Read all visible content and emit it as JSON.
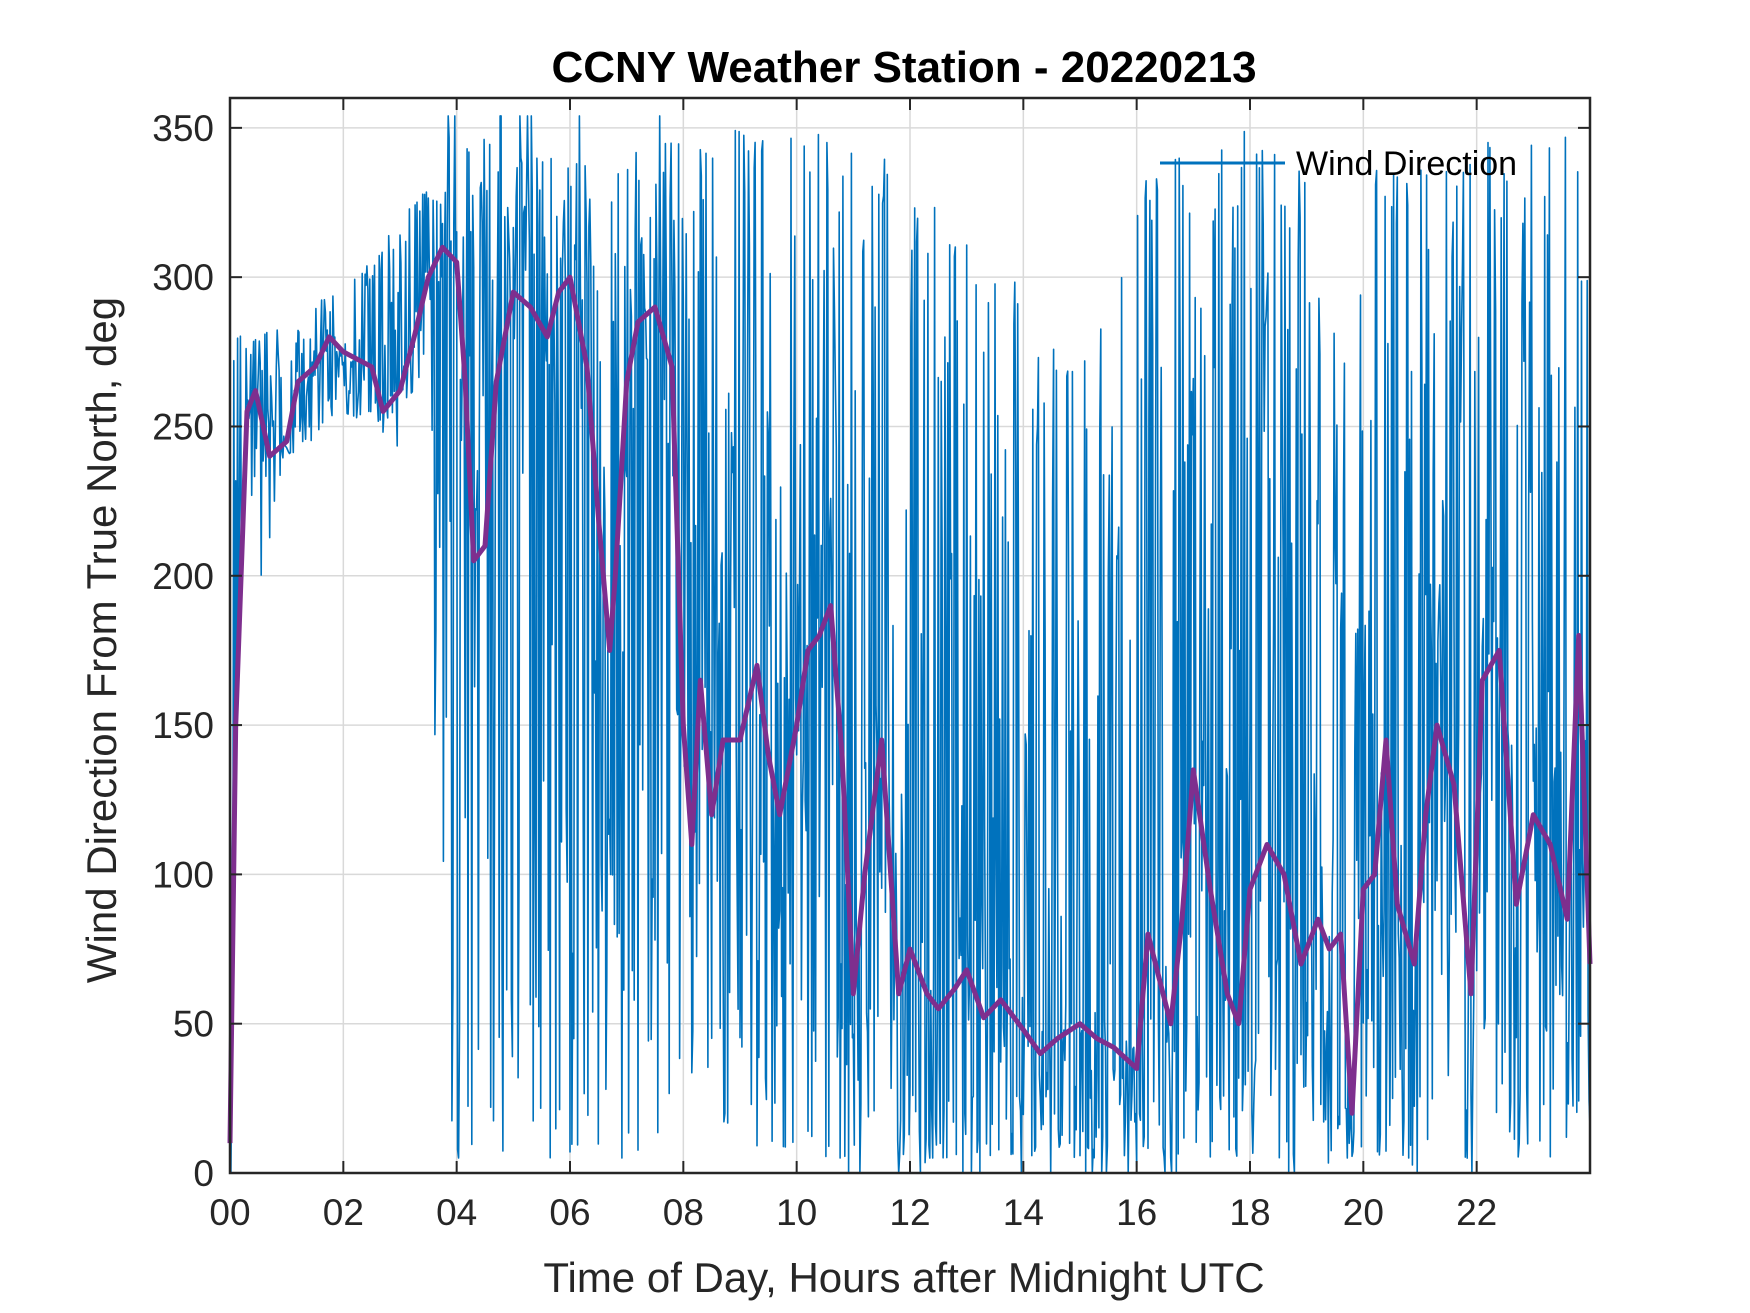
{
  "chart_data": {
    "type": "line",
    "title": "CCNY Weather Station - 20220213",
    "xlabel": "Time of Day, Hours after Midnight UTC",
    "ylabel": "Wind Direction From True North, deg",
    "xlim": [
      0,
      24
    ],
    "ylim": [
      0,
      360
    ],
    "grid": true,
    "x_ticks": [
      0,
      2,
      4,
      6,
      8,
      10,
      12,
      14,
      16,
      18,
      20,
      22
    ],
    "x_tick_labels": [
      "00",
      "02",
      "04",
      "06",
      "08",
      "10",
      "12",
      "14",
      "16",
      "18",
      "20",
      "22"
    ],
    "y_ticks": [
      0,
      50,
      100,
      150,
      200,
      250,
      300,
      350
    ],
    "y_tick_labels": [
      "0",
      "50",
      "100",
      "150",
      "200",
      "250",
      "300",
      "350"
    ],
    "legend": {
      "location": "top-right",
      "entries": [
        "Wind Direction"
      ]
    },
    "series": [
      {
        "name": "Wind Direction",
        "color": "#0072BD",
        "style": "noisy raw 1-minute samples; envelope approximated by (x, low, high) rows",
        "envelope": [
          [
            0.0,
            230,
            285
          ],
          [
            0.5,
            190,
            280
          ],
          [
            1.0,
            240,
            285
          ],
          [
            1.5,
            245,
            290
          ],
          [
            2.0,
            255,
            300
          ],
          [
            2.5,
            250,
            305
          ],
          [
            3.0,
            255,
            320
          ],
          [
            3.5,
            270,
            330
          ],
          [
            3.75,
            5,
            335
          ],
          [
            4.0,
            5,
            340
          ],
          [
            4.5,
            5,
            350
          ],
          [
            5.0,
            5,
            340
          ],
          [
            5.5,
            5,
            340
          ],
          [
            6.0,
            5,
            340
          ],
          [
            6.5,
            5,
            345
          ],
          [
            7.0,
            5,
            345
          ],
          [
            7.5,
            5,
            345
          ],
          [
            8.0,
            5,
            345
          ],
          [
            8.5,
            5,
            350
          ],
          [
            9.0,
            5,
            350
          ],
          [
            9.5,
            5,
            345
          ],
          [
            10.0,
            5,
            350
          ],
          [
            10.5,
            5,
            350
          ],
          [
            11.0,
            5,
            345
          ],
          [
            11.5,
            5,
            340
          ],
          [
            12.0,
            5,
            335
          ],
          [
            12.5,
            5,
            335
          ],
          [
            13.0,
            5,
            320
          ],
          [
            13.5,
            5,
            300
          ],
          [
            14.0,
            5,
            300
          ],
          [
            14.5,
            5,
            280
          ],
          [
            15.0,
            5,
            290
          ],
          [
            15.5,
            5,
            280
          ],
          [
            16.0,
            5,
            330
          ],
          [
            16.5,
            5,
            340
          ],
          [
            17.0,
            5,
            340
          ],
          [
            17.5,
            5,
            345
          ],
          [
            18.0,
            5,
            350
          ],
          [
            18.5,
            5,
            345
          ],
          [
            19.0,
            5,
            340
          ],
          [
            19.5,
            5,
            350
          ],
          [
            20.0,
            5,
            340
          ],
          [
            20.5,
            5,
            345
          ],
          [
            21.0,
            5,
            340
          ],
          [
            21.5,
            5,
            335
          ],
          [
            22.0,
            5,
            350
          ],
          [
            22.5,
            5,
            340
          ],
          [
            23.0,
            5,
            345
          ],
          [
            23.5,
            5,
            350
          ],
          [
            24.0,
            5,
            335
          ]
        ]
      },
      {
        "name": "",
        "color": "#7E2F8E",
        "style": "smoothed running mean",
        "x": [
          0.0,
          0.1,
          0.3,
          0.45,
          0.7,
          1.0,
          1.2,
          1.5,
          1.75,
          2.0,
          2.5,
          2.7,
          3.0,
          3.25,
          3.5,
          3.75,
          4.0,
          4.15,
          4.3,
          4.5,
          4.7,
          5.0,
          5.3,
          5.6,
          5.8,
          6.0,
          6.3,
          6.5,
          6.7,
          6.8,
          7.0,
          7.2,
          7.5,
          7.8,
          8.0,
          8.15,
          8.3,
          8.5,
          8.7,
          9.0,
          9.3,
          9.5,
          9.7,
          10.0,
          10.2,
          10.4,
          10.6,
          10.8,
          11.0,
          11.2,
          11.5,
          11.8,
          12.0,
          12.3,
          12.5,
          12.8,
          13.0,
          13.3,
          13.6,
          14.0,
          14.3,
          14.6,
          15.0,
          15.3,
          15.6,
          16.0,
          16.2,
          16.4,
          16.6,
          16.8,
          17.0,
          17.3,
          17.6,
          17.8,
          18.0,
          18.3,
          18.6,
          18.9,
          19.2,
          19.4,
          19.6,
          19.8,
          20.0,
          20.2,
          20.4,
          20.6,
          20.9,
          21.1,
          21.3,
          21.6,
          21.9,
          22.1,
          22.4,
          22.7,
          23.0,
          23.3,
          23.6,
          23.8,
          24.0
        ],
        "y": [
          10,
          150,
          255,
          262,
          240,
          245,
          265,
          270,
          280,
          275,
          270,
          255,
          262,
          280,
          300,
          310,
          305,
          265,
          205,
          210,
          265,
          295,
          290,
          280,
          295,
          300,
          270,
          220,
          175,
          200,
          265,
          285,
          290,
          270,
          150,
          110,
          165,
          120,
          145,
          145,
          170,
          140,
          120,
          150,
          175,
          180,
          190,
          140,
          60,
          100,
          145,
          60,
          75,
          60,
          55,
          62,
          68,
          52,
          58,
          48,
          40,
          45,
          50,
          45,
          42,
          35,
          80,
          65,
          50,
          85,
          135,
          95,
          60,
          50,
          95,
          110,
          100,
          70,
          85,
          75,
          80,
          20,
          95,
          100,
          145,
          90,
          70,
          120,
          150,
          130,
          60,
          165,
          175,
          90,
          120,
          110,
          85,
          180,
          70
        ]
      }
    ]
  }
}
